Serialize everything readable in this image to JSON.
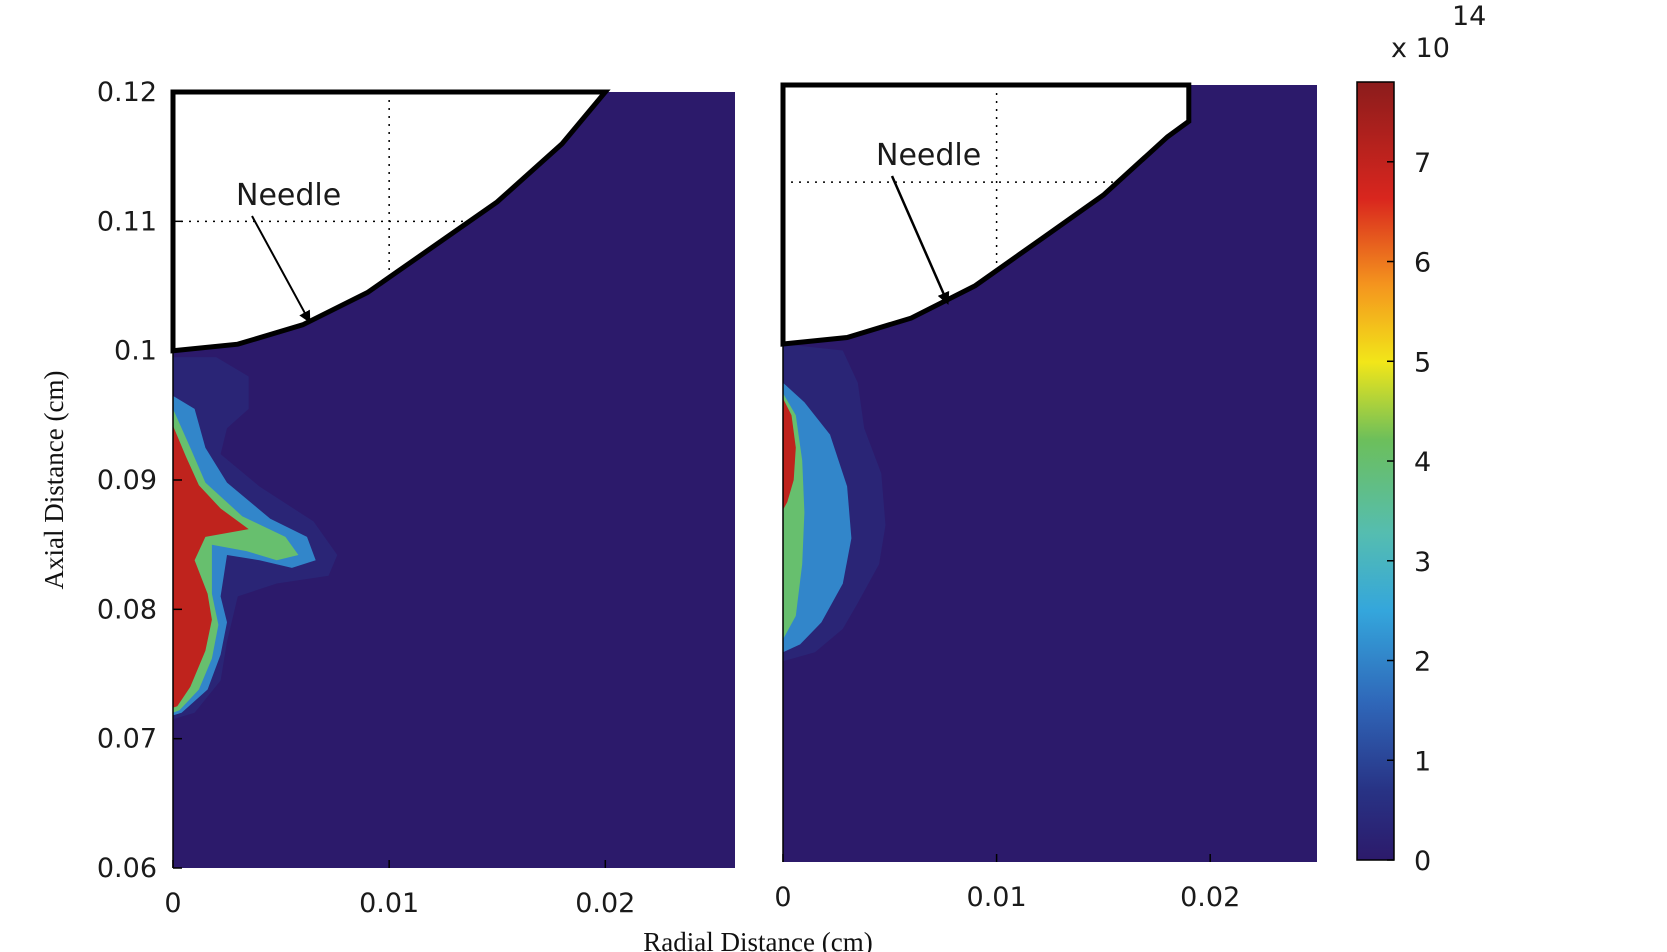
{
  "chart_data": [
    {
      "type": "heatmap",
      "panel": "left",
      "xlabel": "Radial Distance (cm)",
      "ylabel": "Axial Distance (cm)",
      "xlim": [
        0,
        0.026
      ],
      "ylim": [
        0.06,
        0.12
      ],
      "x_ticks": [
        0,
        0.01,
        0.02
      ],
      "x_tick_labels": [
        "0",
        "0.01",
        "0.02"
      ],
      "y_ticks": [
        0.06,
        0.07,
        0.08,
        0.09,
        0.1,
        0.11,
        0.12
      ],
      "y_tick_labels": [
        "0.06",
        "0.07",
        "0.08",
        "0.09",
        "0.1",
        "0.11",
        "0.12"
      ],
      "grid": "dotted, visible only inside needle region",
      "background_value": 0,
      "needle": {
        "label": "Needle",
        "tip_z": 0.1,
        "profile": [
          [
            0,
            0.1
          ],
          [
            0.003,
            0.1005
          ],
          [
            0.006,
            0.102
          ],
          [
            0.009,
            0.1045
          ],
          [
            0.012,
            0.108
          ],
          [
            0.015,
            0.1115
          ],
          [
            0.018,
            0.116
          ],
          [
            0.02,
            0.12
          ]
        ],
        "arrow_target": [
          0.0063,
          0.1023
        ]
      },
      "contours": [
        {
          "level": 0.3,
          "points": [
            [
              0,
              0.0995
            ],
            [
              0.002,
              0.0995
            ],
            [
              0.0035,
              0.098
            ],
            [
              0.0035,
              0.0955
            ],
            [
              0.0025,
              0.094
            ],
            [
              0.0022,
              0.092
            ],
            [
              0.004,
              0.0895
            ],
            [
              0.0065,
              0.0868
            ],
            [
              0.0076,
              0.0842
            ],
            [
              0.0072,
              0.0826
            ],
            [
              0.0048,
              0.082
            ],
            [
              0.003,
              0.081
            ],
            [
              0.0025,
              0.0775
            ],
            [
              0.0022,
              0.0745
            ],
            [
              0.001,
              0.072
            ],
            [
              0,
              0.0715
            ]
          ]
        },
        {
          "level": 2.0,
          "points": [
            [
              0,
              0.0965
            ],
            [
              0.001,
              0.0955
            ],
            [
              0.0015,
              0.0925
            ],
            [
              0.0025,
              0.0898
            ],
            [
              0.0045,
              0.087
            ],
            [
              0.0062,
              0.0856
            ],
            [
              0.0066,
              0.0838
            ],
            [
              0.0055,
              0.0832
            ],
            [
              0.004,
              0.0838
            ],
            [
              0.0025,
              0.0842
            ],
            [
              0.0022,
              0.081
            ],
            [
              0.0025,
              0.079
            ],
            [
              0.0022,
              0.0765
            ],
            [
              0.0016,
              0.0738
            ],
            [
              0.0004,
              0.072
            ],
            [
              0,
              0.0718
            ]
          ]
        },
        {
          "level": 4.0,
          "points": [
            [
              0,
              0.0955
            ],
            [
              0.0008,
              0.0925
            ],
            [
              0.0015,
              0.0898
            ],
            [
              0.0032,
              0.0872
            ],
            [
              0.0052,
              0.0856
            ],
            [
              0.0058,
              0.0842
            ],
            [
              0.0048,
              0.0838
            ],
            [
              0.0034,
              0.0845
            ],
            [
              0.0018,
              0.085
            ],
            [
              0.0018,
              0.0812
            ],
            [
              0.0021,
              0.0788
            ],
            [
              0.0018,
              0.0762
            ],
            [
              0.0012,
              0.0738
            ],
            [
              0.0003,
              0.0722
            ],
            [
              0,
              0.072
            ]
          ]
        },
        {
          "level": 7.0,
          "points": [
            [
              0,
              0.0942
            ],
            [
              0.0006,
              0.0918
            ],
            [
              0.0012,
              0.0896
            ],
            [
              0.0022,
              0.0878
            ],
            [
              0.0035,
              0.0862
            ],
            [
              0.0015,
              0.0856
            ],
            [
              0.001,
              0.0838
            ],
            [
              0.0016,
              0.0812
            ],
            [
              0.0018,
              0.0792
            ],
            [
              0.0015,
              0.0768
            ],
            [
              0.0008,
              0.074
            ],
            [
              0.0002,
              0.0725
            ],
            [
              0,
              0.0724
            ]
          ]
        }
      ]
    },
    {
      "type": "heatmap",
      "panel": "right",
      "xlim": [
        0,
        0.025
      ],
      "x_ticks": [
        0,
        0.01,
        0.02
      ],
      "x_tick_labels": [
        "0",
        "0.01",
        "0.02"
      ],
      "grid": "dotted, visible only inside needle region",
      "background_value": 0,
      "needle": {
        "label": "Needle",
        "profile": [
          [
            0,
            0.1
          ],
          [
            0.003,
            0.1005
          ],
          [
            0.006,
            0.102
          ],
          [
            0.009,
            0.1045
          ],
          [
            0.012,
            0.108
          ],
          [
            0.015,
            0.1115
          ],
          [
            0.018,
            0.116
          ],
          [
            0.019,
            0.1172
          ]
        ],
        "arrow_target": [
          0.0077,
          0.1032
        ]
      },
      "contours": [
        {
          "level": 0.3,
          "points": [
            [
              0,
              0.1
            ],
            [
              0.0028,
              0.0995
            ],
            [
              0.0035,
              0.097
            ],
            [
              0.0038,
              0.0935
            ],
            [
              0.0046,
              0.09
            ],
            [
              0.0048,
              0.086
            ],
            [
              0.0045,
              0.083
            ],
            [
              0.0035,
              0.08
            ],
            [
              0.0028,
              0.078
            ],
            [
              0.0015,
              0.0762
            ],
            [
              0,
              0.0755
            ]
          ]
        },
        {
          "level": 2.0,
          "points": [
            [
              0,
              0.097
            ],
            [
              0.001,
              0.0955
            ],
            [
              0.0022,
              0.093
            ],
            [
              0.003,
              0.089
            ],
            [
              0.0032,
              0.085
            ],
            [
              0.0028,
              0.0815
            ],
            [
              0.0018,
              0.0785
            ],
            [
              0.0008,
              0.0768
            ],
            [
              0,
              0.0762
            ]
          ]
        },
        {
          "level": 4.0,
          "points": [
            [
              0,
              0.0962
            ],
            [
              0.0006,
              0.0945
            ],
            [
              0.0009,
              0.091
            ],
            [
              0.001,
              0.087
            ],
            [
              0.0009,
              0.083
            ],
            [
              0.0006,
              0.079
            ],
            [
              0,
              0.0772
            ]
          ]
        },
        {
          "level": 7.0,
          "points": [
            [
              0,
              0.0958
            ],
            [
              0.0004,
              0.0945
            ],
            [
              0.0006,
              0.092
            ],
            [
              0.0005,
              0.0895
            ],
            [
              0.0002,
              0.0878
            ],
            [
              0,
              0.0872
            ]
          ]
        }
      ]
    }
  ],
  "figure": {
    "xlabel": "Radial Distance (cm)",
    "ylabel": "Axial Distance (cm)"
  },
  "colorbar": {
    "range": [
      0,
      7.8
    ],
    "ticks": [
      0,
      1,
      2,
      3,
      4,
      5,
      6,
      7
    ],
    "tick_labels": [
      "0",
      "1",
      "2",
      "3",
      "4",
      "5",
      "6",
      "7"
    ],
    "multiplier_base": "x 10",
    "multiplier_exponent": "14",
    "colormap": "jet"
  },
  "colors": {
    "background": "#2c1a6b",
    "needle_fill": "#ffffff",
    "needle_outline": "#000000"
  }
}
